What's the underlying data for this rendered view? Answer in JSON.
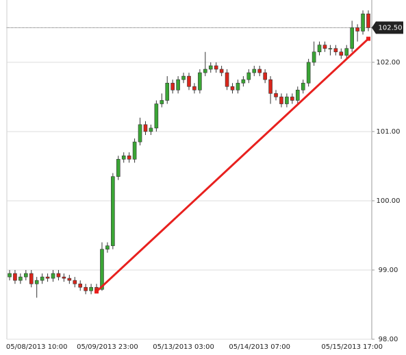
{
  "chart_data": {
    "type": "candlestick",
    "categories": [
      null,
      null,
      null,
      null,
      null,
      "05/08/2013 10:00",
      null,
      null,
      null,
      null,
      null,
      null,
      null,
      null,
      null,
      null,
      null,
      null,
      "05/09/2013 23:00",
      null,
      null,
      null,
      null,
      null,
      null,
      null,
      null,
      null,
      null,
      null,
      null,
      null,
      "05/13/2013 03:00",
      null,
      null,
      null,
      null,
      null,
      null,
      null,
      null,
      null,
      null,
      null,
      null,
      null,
      "05/14/2013 07:00",
      null,
      null,
      null,
      null,
      null,
      null,
      null,
      null,
      null,
      null,
      null,
      null,
      null,
      null,
      null,
      null,
      "05/15/2013 17:00",
      null,
      null,
      null
    ],
    "open": [
      98.9,
      98.95,
      98.85,
      98.9,
      98.95,
      98.8,
      98.85,
      98.9,
      98.88,
      98.95,
      98.9,
      98.88,
      98.85,
      98.8,
      98.75,
      98.7,
      98.75,
      98.72,
      99.3,
      99.35,
      100.35,
      100.6,
      100.65,
      100.6,
      100.85,
      101.1,
      101.0,
      101.05,
      101.4,
      101.45,
      101.7,
      101.6,
      101.75,
      101.8,
      101.65,
      101.6,
      101.85,
      101.9,
      101.95,
      101.9,
      101.85,
      101.65,
      101.6,
      101.7,
      101.75,
      101.85,
      101.9,
      101.85,
      101.75,
      101.55,
      101.5,
      101.4,
      101.5,
      101.45,
      101.6,
      101.7,
      102.0,
      102.15,
      102.25,
      102.2,
      102.2,
      102.15,
      102.1,
      102.2,
      102.5,
      102.45,
      102.7
    ],
    "high": [
      99.0,
      99.0,
      98.95,
      99.0,
      99.0,
      98.9,
      98.95,
      98.95,
      99.0,
      99.0,
      98.95,
      98.93,
      98.9,
      98.85,
      98.8,
      98.8,
      98.8,
      99.4,
      99.4,
      100.4,
      100.65,
      100.7,
      100.7,
      100.9,
      101.2,
      101.15,
      101.1,
      101.45,
      101.55,
      101.8,
      101.75,
      101.8,
      101.85,
      101.85,
      101.7,
      101.9,
      102.15,
      102.0,
      102.0,
      101.95,
      101.9,
      101.7,
      101.75,
      101.8,
      101.9,
      101.95,
      101.95,
      101.9,
      101.8,
      101.6,
      101.55,
      101.55,
      101.55,
      101.65,
      101.75,
      102.05,
      102.3,
      102.3,
      102.3,
      102.25,
      102.25,
      102.2,
      102.25,
      102.6,
      102.55,
      102.75,
      102.75
    ],
    "low": [
      98.85,
      98.8,
      98.8,
      98.85,
      98.75,
      98.6,
      98.8,
      98.83,
      98.83,
      98.85,
      98.83,
      98.8,
      98.75,
      98.7,
      98.65,
      98.65,
      98.67,
      98.7,
      99.25,
      99.3,
      100.3,
      100.55,
      100.55,
      100.55,
      100.8,
      100.95,
      100.95,
      101.0,
      101.35,
      101.4,
      101.55,
      101.55,
      101.7,
      101.6,
      101.55,
      101.55,
      101.8,
      101.85,
      101.85,
      101.8,
      101.6,
      101.55,
      101.55,
      101.65,
      101.7,
      101.8,
      101.8,
      101.7,
      101.4,
      101.45,
      101.35,
      101.35,
      101.4,
      101.4,
      101.55,
      101.65,
      101.95,
      102.1,
      102.15,
      102.1,
      102.1,
      102.05,
      102.05,
      102.15,
      102.3,
      102.4,
      102.45
    ],
    "close": [
      98.95,
      98.85,
      98.9,
      98.95,
      98.8,
      98.85,
      98.9,
      98.88,
      98.95,
      98.9,
      98.88,
      98.85,
      98.8,
      98.75,
      98.7,
      98.75,
      98.72,
      99.3,
      99.35,
      100.35,
      100.6,
      100.65,
      100.6,
      100.85,
      101.1,
      101.0,
      101.05,
      101.4,
      101.45,
      101.7,
      101.6,
      101.75,
      101.8,
      101.65,
      101.6,
      101.85,
      101.9,
      101.95,
      101.9,
      101.85,
      101.65,
      101.6,
      101.7,
      101.75,
      101.85,
      101.9,
      101.85,
      101.75,
      101.55,
      101.5,
      101.4,
      101.5,
      101.45,
      101.6,
      101.7,
      102.0,
      102.15,
      102.25,
      102.2,
      102.2,
      102.15,
      102.1,
      102.2,
      102.5,
      102.45,
      102.7,
      102.5
    ],
    "up_color": "#3aa535",
    "down_color": "#d9261c",
    "ylim": [
      98,
      102.9
    ],
    "yticks": [
      {
        "value": 98,
        "label": "98.00"
      },
      {
        "value": 99,
        "label": "99.00"
      },
      {
        "value": 100,
        "label": "100.00"
      },
      {
        "value": 101,
        "label": "101.00"
      },
      {
        "value": 102,
        "label": "102.00"
      }
    ],
    "grid": true,
    "last_price": {
      "value": 102.5,
      "label": "102.50"
    },
    "trend_line": {
      "start_index": 16,
      "start_value": 98.69,
      "end_index": 66,
      "end_value": 102.34,
      "color": "#e8201e"
    }
  }
}
